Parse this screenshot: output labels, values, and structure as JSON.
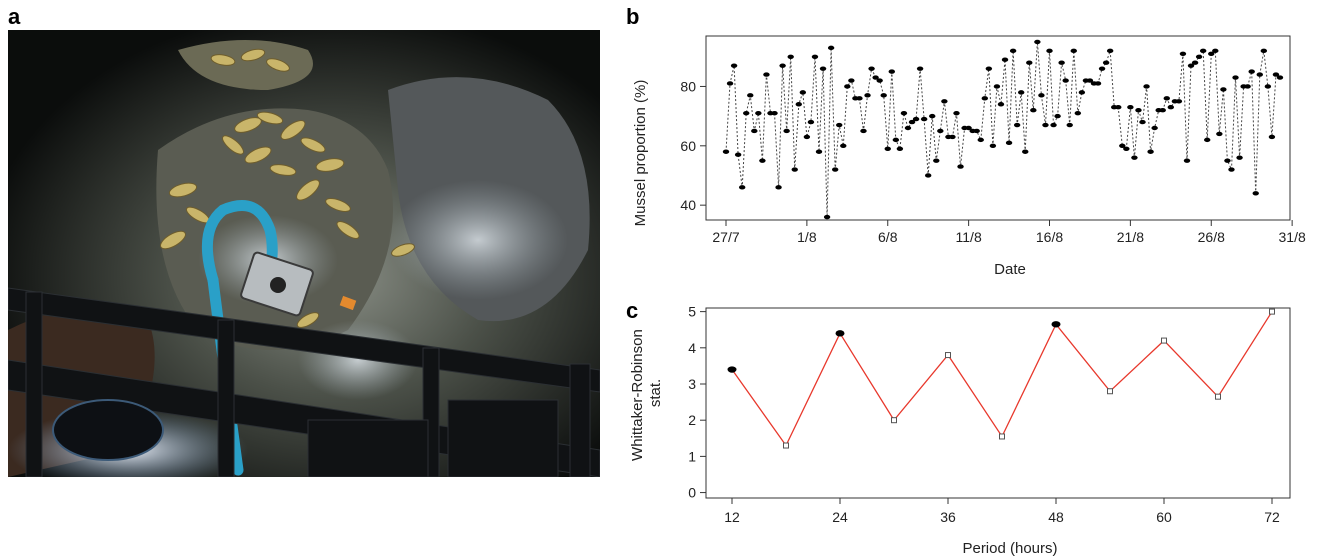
{
  "panels": {
    "a": "a",
    "b": "b",
    "c": "c"
  },
  "chart_data": [
    {
      "type": "line",
      "panel": "b",
      "xlabel": "Date",
      "ylabel": "Mussel proportion (%)",
      "xticks": [
        "27/7",
        "1/8",
        "6/8",
        "11/8",
        "16/8",
        "21/8",
        "26/8",
        "31/8"
      ],
      "ylim": [
        35,
        97
      ],
      "yticks": [
        40,
        60,
        80
      ],
      "line_style": "dotted",
      "line_color": "#444444",
      "marker_color": "#000000",
      "x_start": "27/7",
      "values": [
        58,
        81,
        87,
        57,
        46,
        71,
        77,
        65,
        71,
        55,
        84,
        71,
        71,
        46,
        87,
        65,
        90,
        52,
        74,
        78,
        63,
        68,
        90,
        58,
        86,
        36,
        93,
        52,
        67,
        60,
        80,
        82,
        76,
        76,
        65,
        77,
        86,
        83,
        82,
        77,
        59,
        85,
        62,
        59,
        71,
        66,
        68,
        69,
        86,
        69,
        50,
        70,
        55,
        65,
        75,
        63,
        63,
        71,
        53,
        66,
        66,
        65,
        65,
        62,
        76,
        86,
        60,
        80,
        74,
        89,
        61,
        92,
        67,
        78,
        58,
        88,
        72,
        95,
        77,
        67,
        92,
        67,
        70,
        88,
        82,
        67,
        92,
        71,
        78,
        82,
        82,
        81,
        81,
        86,
        88,
        92,
        73,
        73,
        60,
        59,
        73,
        56,
        72,
        68,
        80,
        58,
        66,
        72,
        72,
        76,
        73,
        75,
        75,
        91,
        55,
        87,
        88,
        90,
        92,
        62,
        91,
        92,
        64,
        79,
        55,
        52,
        83,
        56,
        80,
        80,
        85,
        44,
        84,
        92,
        80,
        63,
        84,
        83
      ]
    },
    {
      "type": "line",
      "panel": "c",
      "xlabel": "Period (hours)",
      "ylabel": "Whittaker-Robinson stat.",
      "x": [
        12,
        18,
        24,
        30,
        36,
        42,
        48,
        54,
        60,
        66,
        72
      ],
      "xticks": [
        12,
        24,
        36,
        48,
        60,
        72
      ],
      "values": [
        3.4,
        1.3,
        4.4,
        2.0,
        3.8,
        1.55,
        4.65,
        2.8,
        4.2,
        2.65,
        5.0
      ],
      "highlighted": [
        true,
        false,
        true,
        false,
        false,
        false,
        true,
        false,
        false,
        false,
        false
      ],
      "ylim": [
        0,
        5.1
      ],
      "yticks": [
        0,
        1,
        2,
        3,
        4,
        5
      ],
      "line_color": "#e8382c"
    }
  ]
}
